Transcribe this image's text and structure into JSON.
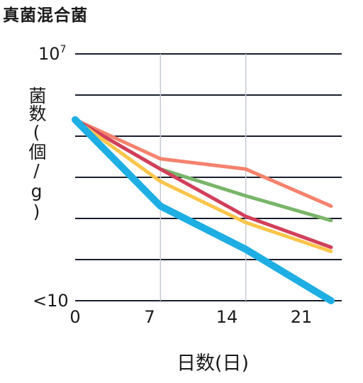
{
  "title": "真菌混合菌",
  "chart_data": {
    "type": "line",
    "ylabel": "菌数(個/g)",
    "xlabel": "日数(日)",
    "x_ticks": [
      "0",
      "7",
      "14",
      "21"
    ],
    "y_scale": "log",
    "y_top_label": {
      "base": "10",
      "exp": "7"
    },
    "y_bottom_label": "<10",
    "ylim_log10": [
      1,
      7
    ],
    "xlim": [
      0,
      25
    ],
    "x": [
      0,
      8,
      16,
      24
    ],
    "grid": {
      "horizontal": true,
      "vertical_at": [
        8,
        16
      ]
    },
    "series": [
      {
        "color": "#f5826d",
        "values_log10": [
          5.4,
          4.45,
          4.2,
          3.3
        ],
        "stroke": 5
      },
      {
        "color": "#7ab56a",
        "values_log10": [
          5.4,
          4.2,
          3.55,
          2.95
        ],
        "stroke": 5
      },
      {
        "color": "#d23f5a",
        "values_log10": [
          5.4,
          4.2,
          3.05,
          2.3
        ],
        "stroke": 5
      },
      {
        "color": "#fbc54a",
        "values_log10": [
          5.4,
          3.9,
          2.9,
          2.2
        ],
        "stroke": 5
      },
      {
        "color": "#1eaee3",
        "values_log10": [
          5.4,
          3.3,
          2.25,
          1.0
        ],
        "stroke": 10
      }
    ]
  }
}
